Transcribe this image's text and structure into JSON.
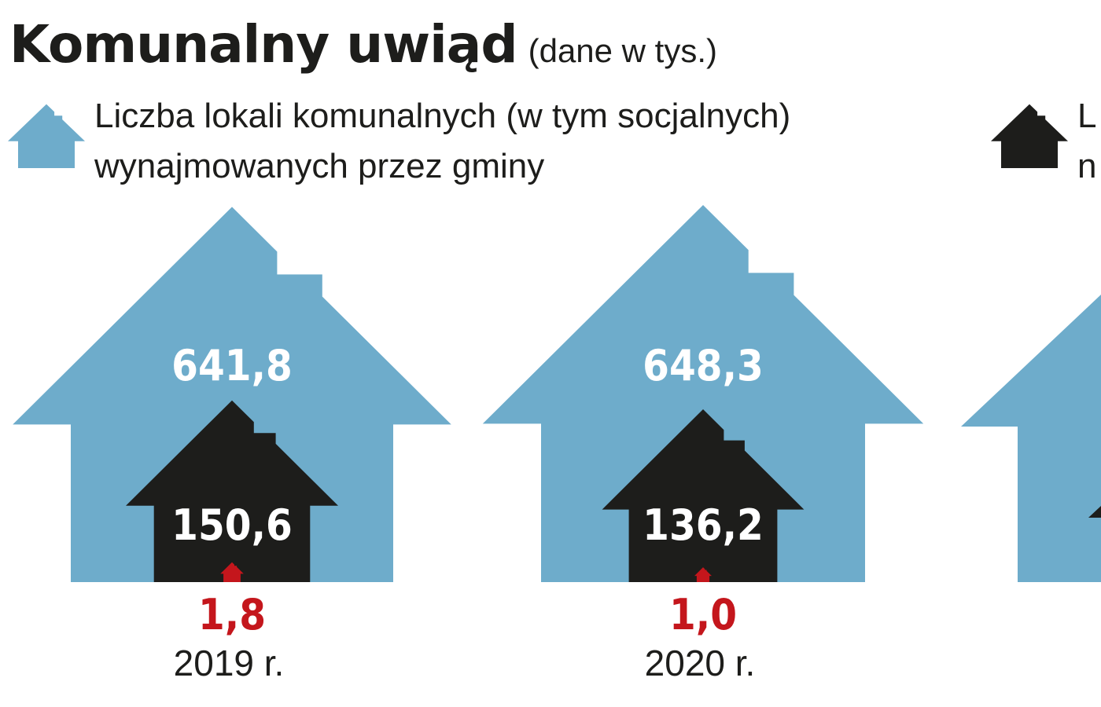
{
  "title": "Komunalny uwiąd",
  "subtitle": "(dane w tys.)",
  "colors": {
    "blue": "#6eaccb",
    "black": "#1d1d1b",
    "red": "#c4161c",
    "white": "#ffffff"
  },
  "legend": [
    {
      "icon": "blue-house-icon",
      "lines": [
        "Liczba lokali komunalnych (w tym socjalnych)",
        "wynajmowanych przez gminy"
      ]
    },
    {
      "icon": "black-house-icon",
      "lines": [
        "L",
        "n"
      ]
    }
  ],
  "chart_data": {
    "type": "pictograph",
    "categories": [
      "2019 r.",
      "2020 r."
    ],
    "series": [
      {
        "values": [
          641.8,
          648.3
        ],
        "labels": [
          "641,8",
          "648,3"
        ]
      },
      {
        "values": [
          150.6,
          136.2
        ],
        "labels": [
          "150,6",
          "136,2"
        ]
      },
      {
        "values": [
          1.8,
          1.0
        ],
        "labels": [
          "1,8",
          "1,0"
        ]
      }
    ]
  }
}
